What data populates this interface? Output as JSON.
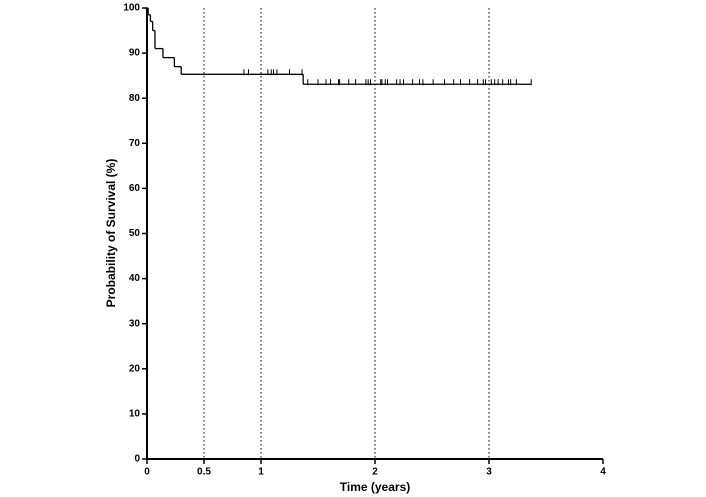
{
  "chart_data": {
    "type": "kaplan-meier",
    "xlabel": "Time (years)",
    "ylabel": "Probability of Survival (%)",
    "xlim": [
      0,
      4
    ],
    "xticks": [
      0,
      0.5,
      1,
      2,
      3,
      4
    ],
    "ylim": [
      0,
      100
    ],
    "yticks": [
      0,
      10,
      20,
      30,
      40,
      50,
      60,
      70,
      80,
      90,
      100
    ],
    "x_grid": [
      0.5,
      1,
      2,
      3
    ],
    "color": "#000000",
    "steps": {
      "x": [
        0,
        0.01,
        0.03,
        0.05,
        0.07,
        0.14,
        0.24,
        0.3,
        1.37,
        3.37
      ],
      "y": [
        100,
        98.5,
        97,
        95,
        91,
        89,
        87,
        85.3,
        83.1,
        83.1
      ]
    },
    "censored": {
      "x": [
        0.85,
        0.89,
        1.06,
        1.09,
        1.11,
        1.14,
        1.25,
        1.36,
        1.41,
        1.5,
        1.57,
        1.61,
        1.68,
        1.69,
        1.77,
        1.83,
        1.92,
        1.94,
        1.96,
        2.05,
        2.06,
        2.09,
        2.11,
        2.19,
        2.22,
        2.25,
        2.33,
        2.39,
        2.42,
        2.51,
        2.61,
        2.69,
        2.75,
        2.83,
        2.9,
        2.95,
        2.97,
        3.02,
        3.05,
        3.08,
        3.12,
        3.17,
        3.19,
        3.24,
        3.37
      ],
      "y": [
        85.3,
        85.3,
        85.3,
        85.3,
        85.3,
        85.3,
        85.3,
        85.3,
        83.1,
        83.1,
        83.1,
        83.1,
        83.1,
        83.1,
        83.1,
        83.1,
        83.1,
        83.1,
        83.1,
        83.1,
        83.1,
        83.1,
        83.1,
        83.1,
        83.1,
        83.1,
        83.1,
        83.1,
        83.1,
        83.1,
        83.1,
        83.1,
        83.1,
        83.1,
        83.1,
        83.1,
        83.1,
        83.1,
        83.1,
        83.1,
        83.1,
        83.1,
        83.1,
        83.1,
        83.1
      ]
    }
  }
}
